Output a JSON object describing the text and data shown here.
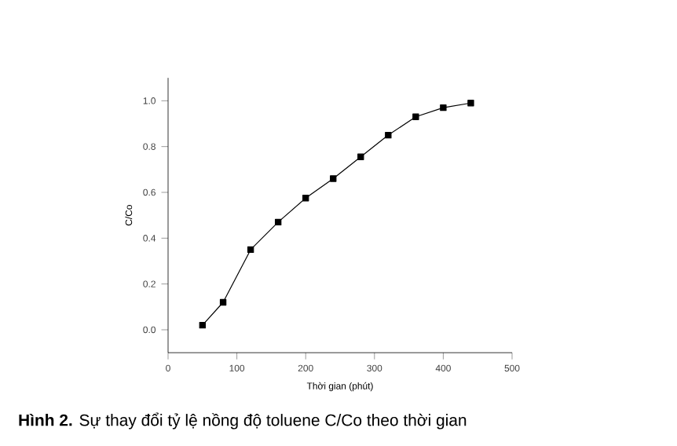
{
  "chart_data": {
    "type": "line",
    "xlabel": "Thời gian (phút)",
    "ylabel": "C/Co",
    "annotations": [
      "**Hình 2.** Sự thay đổi tỷ lệ nồng độ toluene C/Co theo thời gian"
    ],
    "x": [
      50,
      80,
      120,
      160,
      200,
      240,
      280,
      320,
      360,
      400,
      440
    ],
    "series": [
      {
        "color": "#000000",
        "values": [
          0.02,
          0.12,
          0.35,
          0.47,
          0.575,
          0.66,
          0.755,
          0.85,
          0.93,
          0.97,
          0.99
        ]
      }
    ],
    "xlim": [
      0,
      500
    ],
    "xticks": [
      0,
      100,
      200,
      300,
      400,
      500
    ],
    "ylim": [
      -0.1,
      1.1
    ],
    "yticks": [
      {
        "value": 0.0,
        "label": "0.0"
      },
      {
        "value": 0.2,
        "label": "0.2"
      },
      {
        "value": 0.4,
        "label": "0.4"
      },
      {
        "value": 0.6,
        "label": "0.6"
      },
      {
        "value": 0.8,
        "label": "0.8"
      },
      {
        "value": 1.0,
        "label": "1.0"
      }
    ],
    "marker": "square",
    "line_style": "solid"
  }
}
